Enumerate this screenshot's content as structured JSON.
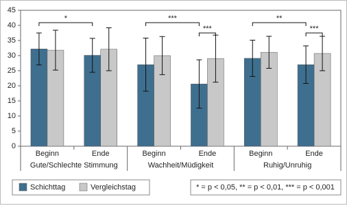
{
  "chart_data": {
    "type": "bar",
    "categories": [
      "Beginn",
      "Ende",
      "Beginn",
      "Ende",
      "Beginn",
      "Ende"
    ],
    "groups": [
      {
        "name": "Gute/Schlechte Stimmung",
        "significance": {
          "beginn_ende": "*"
        }
      },
      {
        "name": "Wachheit/Müdigkeit",
        "significance": {
          "beginn_ende": "***",
          "ende": "***"
        }
      },
      {
        "name": "Ruhig/Unruhig",
        "significance": {
          "beginn_ende": "**",
          "ende": "***"
        }
      }
    ],
    "series": [
      {
        "name": "Schichttag",
        "color": "#3f6f8f",
        "values": [
          32.2,
          30.1,
          27.0,
          20.6,
          29.1,
          27.0
        ],
        "errors": [
          5.3,
          5.6,
          8.8,
          8.0,
          6.0,
          6.2
        ]
      },
      {
        "name": "Vergleichstag",
        "color": "#c8c8c8",
        "values": [
          31.8,
          32.1,
          30.0,
          29.0,
          31.1,
          30.7
        ],
        "errors": [
          6.6,
          7.1,
          6.3,
          7.8,
          5.3,
          5.7
        ]
      }
    ],
    "ylim": [
      0,
      45
    ],
    "yticks": [
      0,
      5,
      10,
      15,
      20,
      25,
      30,
      35,
      40,
      45
    ],
    "footnote": "* = p < 0,05, ** = p < 0,01, *** = p < 0,001"
  }
}
